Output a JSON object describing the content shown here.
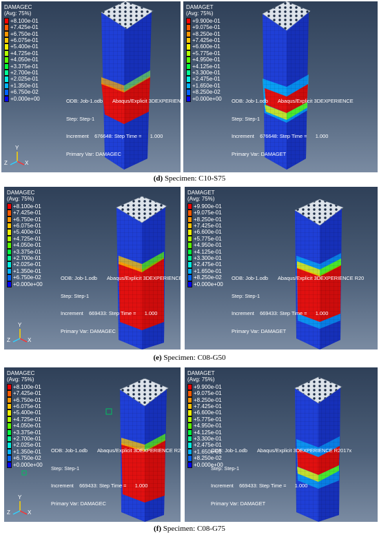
{
  "legend_colors": [
    "#ff0000",
    "#ff5a00",
    "#ff9600",
    "#ffc800",
    "#f0f000",
    "#b4ff00",
    "#5aff00",
    "#00ff3c",
    "#00ff96",
    "#00f0e6",
    "#00b4ff",
    "#0064ff",
    "#0000ff"
  ],
  "legend_compression": {
    "title": "DAMAGEC",
    "avg": "(Avg: 75%)",
    "values": [
      "+8.100e-01",
      "+7.425e-01",
      "+6.750e-01",
      "+6.075e-01",
      "+5.400e-01",
      "+4.725e-01",
      "+4.050e-01",
      "+3.375e-01",
      "+2.700e-01",
      "+2.025e-01",
      "+1.350e-01",
      "+6.750e-02",
      "+0.000e+00"
    ]
  },
  "legend_tension": {
    "title": "DAMAGET",
    "avg": "(Avg: 75%)",
    "values": [
      "+9.900e-01",
      "+9.075e-01",
      "+8.250e-01",
      "+7.425e-01",
      "+6.600e-01",
      "+5.775e-01",
      "+4.950e-01",
      "+4.125e-01",
      "+3.300e-01",
      "+2.475e-01",
      "+1.650e-01",
      "+8.250e-02",
      "+0.000e+00"
    ]
  },
  "axes": {
    "y": "Y",
    "z": "Z",
    "x": "X"
  },
  "panels": {
    "d_left": {
      "odb": "ODB: Job-1.odb",
      "solver": "Abaqus/Explicit 3DEXPERIENCE",
      "step": "Step: Step-1",
      "increment": "Increment    676648: Step Time =      1.000",
      "primary": "Primary Var: DAMAGEC"
    },
    "d_right": {
      "odb": "ODB: Job-1.odb",
      "solver": "Abaqus/Explicit 3DEXPERIENCE",
      "step": "Step: Step-1",
      "increment": "Increment    676648: Step Time =      1.000",
      "primary": "Primary Var: DAMAGET"
    },
    "e_left": {
      "odb": "ODB: Job-1.odb",
      "solver": "Abaqus/Explicit 3DEXPERIENCE",
      "step": "Step: Step-1",
      "increment": "Increment    669433: Step Time =      1.000",
      "primary": "Primary Var: DAMAGEC"
    },
    "e_right": {
      "odb": "ODB: Job-1.odb",
      "solver": "Abaqus/Explicit 3DEXPERIENCE R20",
      "step": "Step: Step-1",
      "increment": "Increment    669433: Step Time =      1.000",
      "primary": "Primary Var: DAMAGET"
    },
    "f_left": {
      "odb": "ODB: Job-1.odb",
      "solver": "Abaqus/Explicit 3DEXPERIENCE R2017",
      "step": "Step: Step-1",
      "increment": "Increment    669433: Step Time =      1.000",
      "primary": "Primary Var: DAMAGEC"
    },
    "f_right": {
      "odb": "ODB: Job-1.odb",
      "solver": "Abaqus/Explicit 3DEXPERIENCE R2017x",
      "step": "Step: Step-1",
      "increment": "Increment    669433: Step Time =      1.000",
      "primary": "Primary Var: DAMAGET"
    }
  },
  "captions": {
    "d": {
      "letter": "(d)",
      "text": " Specimen: C10-S75"
    },
    "e": {
      "letter": "(e)",
      "text": " Specimen: C08-G50"
    },
    "f": {
      "letter": "(f)",
      "text": " Specimen: C08-G75"
    }
  }
}
